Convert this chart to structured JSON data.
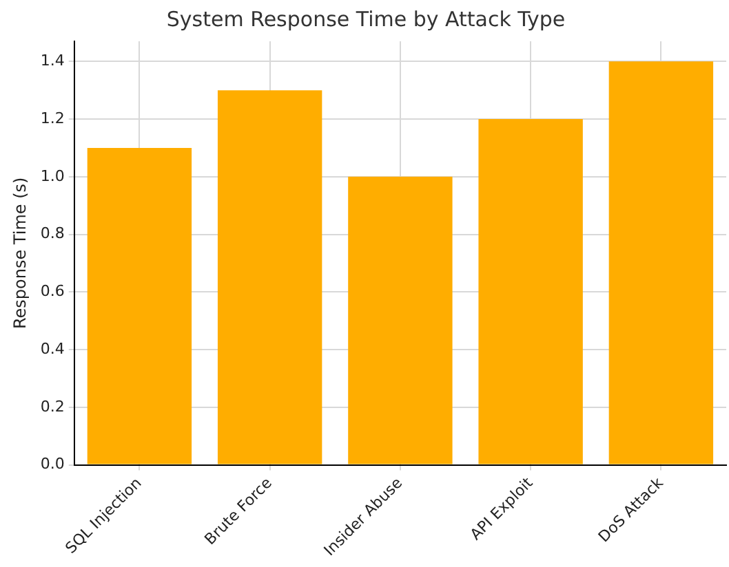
{
  "chart_data": {
    "type": "bar",
    "title": "System Response Time by Attack Type",
    "ylabel": "Response Time (s)",
    "categories": [
      "SQL Injection",
      "Brute Force",
      "Insider Abuse",
      "API Exploit",
      "DoS Attack"
    ],
    "values": [
      1.1,
      1.3,
      1.0,
      1.2,
      1.4
    ],
    "color": "#ffad00",
    "ylim": [
      0,
      1.47
    ],
    "yticks": [
      {
        "value": 0,
        "label": "0.0"
      },
      0.2,
      0.4,
      0.6,
      0.8,
      {
        "value": 1,
        "label": "1.0"
      },
      1.2,
      1.4
    ],
    "grid": true
  }
}
